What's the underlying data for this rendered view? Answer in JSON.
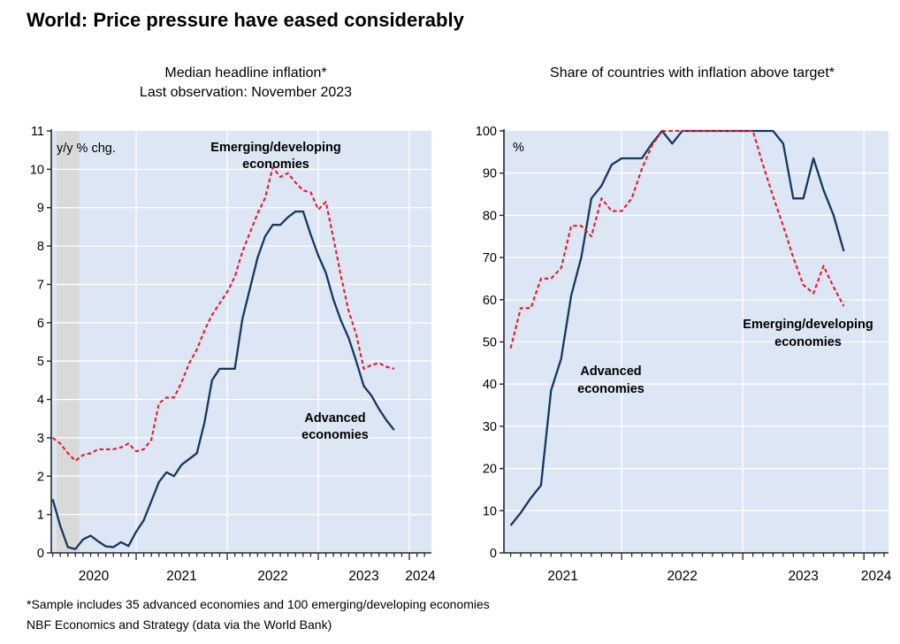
{
  "page": {
    "title": "World: Price pressure have eased considerably",
    "footnotes": [
      "*Sample includes 35 advanced economies and 100 emerging/developing economies",
      "NBF Economics and Strategy (data via the World Bank)"
    ]
  },
  "colors": {
    "advanced": "#17375d",
    "emerging": "#e8192c",
    "plot_bg": "#dce6f4",
    "grid": "#ffffff",
    "recession_band": "#d9d9d9",
    "axis": "#26262e"
  },
  "chart_data": [
    {
      "id": "median-inflation",
      "type": "line",
      "title": "Median headline inflation*",
      "subtitle": "Last observation: November 2023",
      "unit_label": "y/y % chg.",
      "x_start": "2020-02",
      "x_end": "2023-11",
      "x_year_labels": [
        "2020",
        "2021",
        "2022",
        "2023",
        "2024"
      ],
      "ylim": [
        0,
        11
      ],
      "y_tick_step": 1,
      "grid": true,
      "recession_band": [
        "2020-03",
        "2020-05"
      ],
      "series": [
        {
          "name": "Advanced economies",
          "style": "solid",
          "color_key": "advanced",
          "values": [
            1.4,
            0.7,
            0.15,
            0.1,
            0.35,
            0.45,
            0.3,
            0.17,
            0.15,
            0.28,
            0.18,
            0.55,
            0.85,
            1.35,
            1.85,
            2.1,
            2.0,
            2.3,
            2.45,
            2.6,
            3.4,
            4.5,
            4.8,
            4.8,
            4.8,
            6.1,
            6.9,
            7.7,
            8.25,
            8.55,
            8.55,
            8.75,
            8.9,
            8.9,
            8.3,
            7.75,
            7.3,
            6.6,
            6.05,
            5.6,
            5.0,
            4.35,
            4.1,
            3.75,
            3.45,
            3.2
          ]
        },
        {
          "name": "Emerging/developing economies",
          "style": "dashed",
          "color_key": "emerging",
          "values": [
            3.0,
            2.85,
            2.6,
            2.4,
            2.55,
            2.6,
            2.7,
            2.7,
            2.7,
            2.75,
            2.85,
            2.65,
            2.7,
            2.95,
            3.9,
            4.05,
            4.05,
            4.45,
            4.95,
            5.3,
            5.8,
            6.2,
            6.5,
            6.8,
            7.2,
            7.85,
            8.35,
            8.85,
            9.25,
            10.05,
            9.8,
            9.9,
            9.65,
            9.45,
            9.4,
            8.95,
            9.15,
            8.2,
            7.2,
            6.3,
            5.7,
            4.8,
            4.9,
            4.95,
            4.85,
            4.8
          ]
        }
      ],
      "annotations": [
        {
          "lines": [
            "Advanced",
            "economies"
          ],
          "color_key": "advanced"
        },
        {
          "lines": [
            "Emerging/developing",
            "economies"
          ],
          "color_key": "emerging"
        }
      ]
    },
    {
      "id": "share-above-target",
      "type": "line",
      "title": "Share of countries with inflation above target*",
      "unit_label": "%",
      "x_start": "2021-02",
      "x_end": "2023-11",
      "x_year_labels": [
        "2021",
        "2022",
        "2023",
        "2024"
      ],
      "ylim": [
        0,
        100
      ],
      "y_tick_step": 10,
      "grid": true,
      "series": [
        {
          "name": "Advanced economies",
          "style": "solid",
          "color_key": "advanced",
          "values": [
            6.5,
            9.5,
            13,
            16,
            38.5,
            46,
            61,
            70,
            84,
            87,
            92,
            93.5,
            93.5,
            93.5,
            97,
            100,
            97,
            100,
            100,
            100,
            100,
            100,
            100,
            100,
            100,
            100,
            100,
            97,
            84,
            84,
            93.5,
            86,
            80,
            71.5
          ]
        },
        {
          "name": "Emerging/developing economies",
          "style": "dashed",
          "color_key": "emerging",
          "values": [
            48.5,
            58,
            58,
            65,
            65,
            67.5,
            77.5,
            77.5,
            75,
            84,
            81,
            81,
            84,
            91,
            96.5,
            100,
            100,
            100,
            100,
            100,
            100,
            100,
            100,
            100,
            100,
            92,
            84.5,
            77.5,
            70,
            63.5,
            61.5,
            68,
            63,
            58.5
          ]
        }
      ],
      "annotations": [
        {
          "lines": [
            "Advanced",
            "economies"
          ],
          "color_key": "advanced"
        },
        {
          "lines": [
            "Emerging/developing",
            "economies"
          ],
          "color_key": "emerging"
        }
      ]
    }
  ]
}
